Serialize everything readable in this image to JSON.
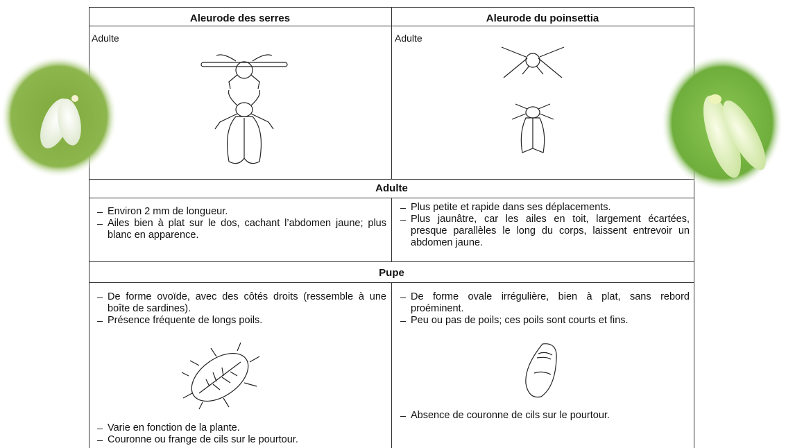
{
  "table": {
    "headers": [
      "Aleurode des serres",
      "Aleurode du poinsettia"
    ],
    "stage_labels": [
      "Adulte",
      "Adulte"
    ],
    "sections": [
      {
        "title": "Adulte",
        "left": [
          "Environ 2 mm de longueur.",
          "Ailes bien à plat sur le dos, cachant l’abdomen jaune; plus blanc en apparence."
        ],
        "right": [
          "Plus petite et rapide dans ses déplacements.",
          "Plus jaunâtre, car les ailes en toit, largement écartées, presque parallèles le long du corps, laissent entrevoir un abdomen jaune."
        ]
      },
      {
        "title": "Pupe",
        "left": [
          "De forme ovoïde, avec des côtés droits (ressemble à une boîte de sardines).",
          "Présence fréquente de longs poils."
        ],
        "left_after": [
          "Varie en fonction de la plante.",
          "Couronne ou frange de cils sur le pourtour."
        ],
        "right": [
          "De forme ovale irrégulière, bien à plat, sans rebord proéminent.",
          "Peu ou pas de poils; ces poils sont courts et fins."
        ],
        "right_after": [
          "Absence de couronne de cils sur le pourtour."
        ]
      }
    ]
  }
}
